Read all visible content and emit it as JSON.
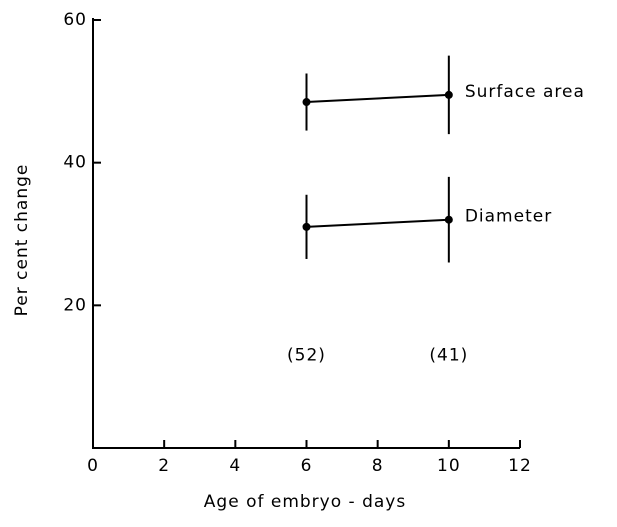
{
  "chart_data": {
    "type": "line",
    "xlabel": "Age of embryo - days",
    "ylabel": "Per cent change",
    "x": [
      6,
      10
    ],
    "series": [
      {
        "name": "Surface area",
        "color": "#000000",
        "values": [
          48.5,
          49.5
        ],
        "errors": [
          4,
          5.5
        ]
      },
      {
        "name": "Diameter",
        "color": "#000000",
        "values": [
          31,
          32
        ],
        "errors": [
          4.5,
          6
        ]
      }
    ],
    "sample_sizes": [
      "(52)",
      "(41)"
    ],
    "sample_sizes_y": 13,
    "xlim": [
      0,
      12
    ],
    "xticks": [
      0,
      2,
      4,
      6,
      8,
      10,
      12
    ],
    "ylim": [
      0,
      60
    ],
    "yticks": [
      20,
      40,
      60
    ],
    "grid": false
  }
}
